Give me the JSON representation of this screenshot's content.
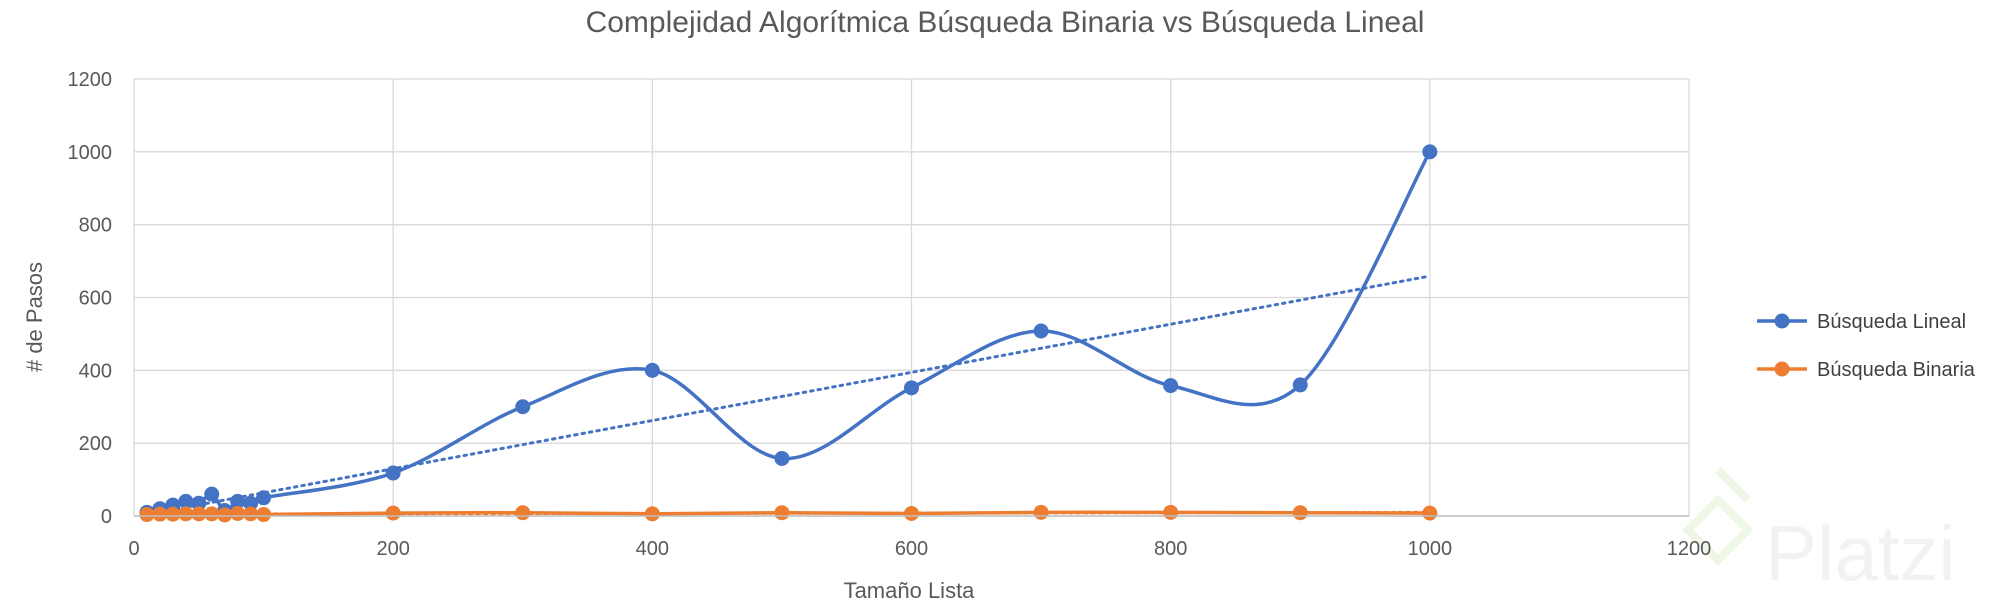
{
  "chart_data": {
    "type": "line",
    "title": "Complejidad Algorítmica Búsqueda Binaria vs Búsqueda Lineal",
    "xlabel": "Tamaño Lista",
    "ylabel": "# de Pasos",
    "xlim": [
      0,
      1200
    ],
    "ylim": [
      0,
      1200
    ],
    "xticks": [
      0,
      200,
      400,
      600,
      800,
      1000,
      1200
    ],
    "yticks": [
      0,
      200,
      400,
      600,
      800,
      1000,
      1200
    ],
    "grid": true,
    "legend_position": "right",
    "trendline": "linear (dotted)",
    "series": [
      {
        "name": "Búsqueda Lineal",
        "color": "#4472c4",
        "points": [
          [
            10,
            10
          ],
          [
            20,
            20
          ],
          [
            30,
            30
          ],
          [
            40,
            40
          ],
          [
            50,
            35
          ],
          [
            60,
            60
          ],
          [
            70,
            15
          ],
          [
            80,
            40
          ],
          [
            90,
            35
          ],
          [
            100,
            50
          ],
          [
            200,
            118
          ],
          [
            300,
            300
          ],
          [
            400,
            400
          ],
          [
            500,
            158
          ],
          [
            600,
            352
          ],
          [
            700,
            508
          ],
          [
            800,
            358
          ],
          [
            900,
            360
          ],
          [
            1000,
            1000
          ]
        ]
      },
      {
        "name": "Búsqueda Binaria",
        "color": "#ed7d31",
        "points": [
          [
            10,
            4
          ],
          [
            20,
            5
          ],
          [
            30,
            5
          ],
          [
            40,
            6
          ],
          [
            50,
            6
          ],
          [
            60,
            6
          ],
          [
            70,
            3
          ],
          [
            80,
            7
          ],
          [
            90,
            6
          ],
          [
            100,
            4
          ],
          [
            200,
            8
          ],
          [
            300,
            9
          ],
          [
            400,
            6
          ],
          [
            500,
            9
          ],
          [
            600,
            7
          ],
          [
            700,
            10
          ],
          [
            800,
            10
          ],
          [
            900,
            9
          ],
          [
            1000,
            8
          ]
        ]
      }
    ]
  },
  "watermark": "Platzi"
}
